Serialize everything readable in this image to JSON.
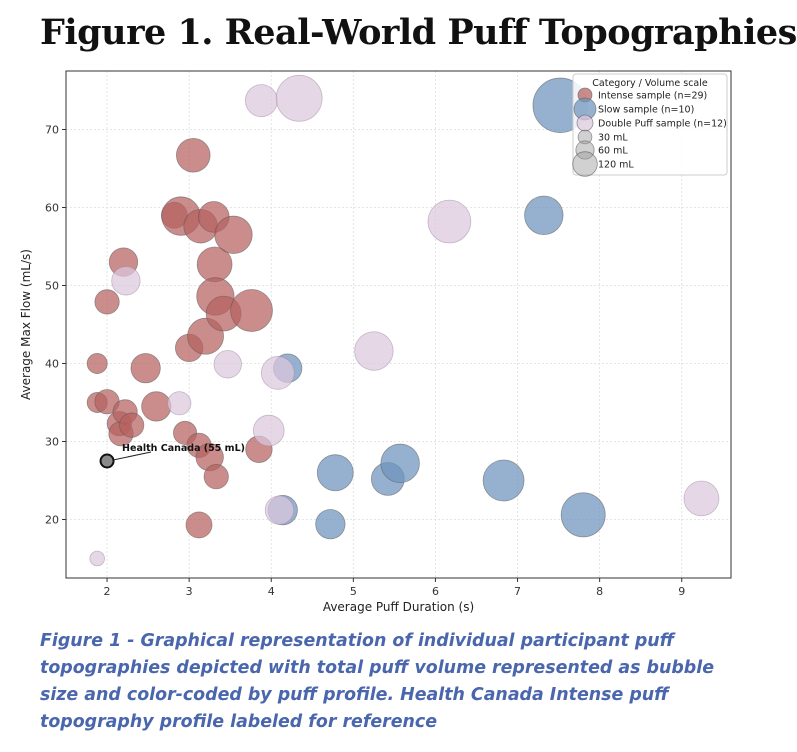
{
  "figure_title": "Figure 1. Real-World Puff Topographies",
  "caption": "Figure 1 - Graphical representation of individual participant puff topographies depicted with total puff volume represented as bubble size and color-coded by puff profile. Health Canada Intense puff topography profile labeled for reference",
  "chart_data": {
    "type": "scatter",
    "title": "",
    "xlabel": "Average Puff Duration (s)",
    "ylabel": "Average Max Flow (mL/s)",
    "xlim": [
      1.5,
      9.6
    ],
    "ylim": [
      12.5,
      77.5
    ],
    "xticks": [
      2,
      3,
      4,
      5,
      6,
      7,
      8,
      9
    ],
    "yticks": [
      20,
      30,
      40,
      50,
      60,
      70
    ],
    "grid": true,
    "legend": {
      "title": "Category / Volume scale",
      "placement": "top-right",
      "size_entries": [
        {
          "label": "30 mL",
          "volume": 30
        },
        {
          "label": "60 mL",
          "volume": 60
        },
        {
          "label": "120 mL",
          "volume": 120
        }
      ]
    },
    "colors": {
      "intense": "#b5615e",
      "slow": "#6d93bd",
      "double": "#dcc8de"
    },
    "series": [
      {
        "name": "Intense sample (n=29)",
        "key": "intense",
        "points": [
          {
            "x": 1.88,
            "y": 40.0,
            "v": 15
          },
          {
            "x": 1.88,
            "y": 35.0,
            "v": 15
          },
          {
            "x": 2.0,
            "y": 35.1,
            "v": 22
          },
          {
            "x": 2.0,
            "y": 47.9,
            "v": 22
          },
          {
            "x": 2.15,
            "y": 32.3,
            "v": 22
          },
          {
            "x": 2.17,
            "y": 31.0,
            "v": 22
          },
          {
            "x": 2.22,
            "y": 33.8,
            "v": 22
          },
          {
            "x": 2.2,
            "y": 53.0,
            "v": 30
          },
          {
            "x": 2.3,
            "y": 32.1,
            "v": 22
          },
          {
            "x": 2.47,
            "y": 39.4,
            "v": 32
          },
          {
            "x": 2.6,
            "y": 34.5,
            "v": 32
          },
          {
            "x": 2.82,
            "y": 59.0,
            "v": 25
          },
          {
            "x": 2.9,
            "y": 58.9,
            "v": 55
          },
          {
            "x": 2.95,
            "y": 31.1,
            "v": 20
          },
          {
            "x": 3.0,
            "y": 42.0,
            "v": 28
          },
          {
            "x": 3.05,
            "y": 66.7,
            "v": 42
          },
          {
            "x": 3.12,
            "y": 29.5,
            "v": 22
          },
          {
            "x": 3.12,
            "y": 19.3,
            "v": 25
          },
          {
            "x": 3.14,
            "y": 57.6,
            "v": 42
          },
          {
            "x": 3.2,
            "y": 43.5,
            "v": 48
          },
          {
            "x": 3.25,
            "y": 28.0,
            "v": 28
          },
          {
            "x": 3.3,
            "y": 58.8,
            "v": 35
          },
          {
            "x": 3.31,
            "y": 52.7,
            "v": 45
          },
          {
            "x": 3.32,
            "y": 48.6,
            "v": 52
          },
          {
            "x": 3.33,
            "y": 25.5,
            "v": 22
          },
          {
            "x": 3.42,
            "y": 46.4,
            "v": 45
          },
          {
            "x": 3.54,
            "y": 56.5,
            "v": 52
          },
          {
            "x": 3.76,
            "y": 46.8,
            "v": 65
          },
          {
            "x": 3.85,
            "y": 29.0,
            "v": 26
          }
        ]
      },
      {
        "name": "Slow sample (n=10)",
        "key": "slow",
        "points": [
          {
            "x": 4.14,
            "y": 21.2,
            "v": 32
          },
          {
            "x": 4.2,
            "y": 39.4,
            "v": 30
          },
          {
            "x": 4.72,
            "y": 19.4,
            "v": 32
          },
          {
            "x": 4.78,
            "y": 26.0,
            "v": 48
          },
          {
            "x": 5.42,
            "y": 25.2,
            "v": 40
          },
          {
            "x": 5.57,
            "y": 27.2,
            "v": 55
          },
          {
            "x": 6.83,
            "y": 25.0,
            "v": 62
          },
          {
            "x": 7.32,
            "y": 59.0,
            "v": 55
          },
          {
            "x": 7.52,
            "y": 73.1,
            "v": 110
          },
          {
            "x": 7.8,
            "y": 20.6,
            "v": 72
          }
        ]
      },
      {
        "name": "Double Puff sample (n=12)",
        "key": "double",
        "points": [
          {
            "x": 1.88,
            "y": 15.0,
            "v": 8
          },
          {
            "x": 2.23,
            "y": 50.6,
            "v": 30
          },
          {
            "x": 2.88,
            "y": 34.9,
            "v": 20
          },
          {
            "x": 3.47,
            "y": 39.9,
            "v": 28
          },
          {
            "x": 3.88,
            "y": 73.7,
            "v": 38
          },
          {
            "x": 3.97,
            "y": 31.4,
            "v": 35
          },
          {
            "x": 4.08,
            "y": 38.8,
            "v": 40
          },
          {
            "x": 4.1,
            "y": 21.2,
            "v": 30
          },
          {
            "x": 4.34,
            "y": 74.0,
            "v": 78
          },
          {
            "x": 5.25,
            "y": 41.6,
            "v": 55
          },
          {
            "x": 6.17,
            "y": 58.2,
            "v": 68
          },
          {
            "x": 9.24,
            "y": 22.7,
            "v": 45
          }
        ]
      }
    ],
    "annotation": {
      "text": "Health Canada (55 mL)",
      "x": 2.0,
      "y": 27.5,
      "v": 55
    }
  }
}
